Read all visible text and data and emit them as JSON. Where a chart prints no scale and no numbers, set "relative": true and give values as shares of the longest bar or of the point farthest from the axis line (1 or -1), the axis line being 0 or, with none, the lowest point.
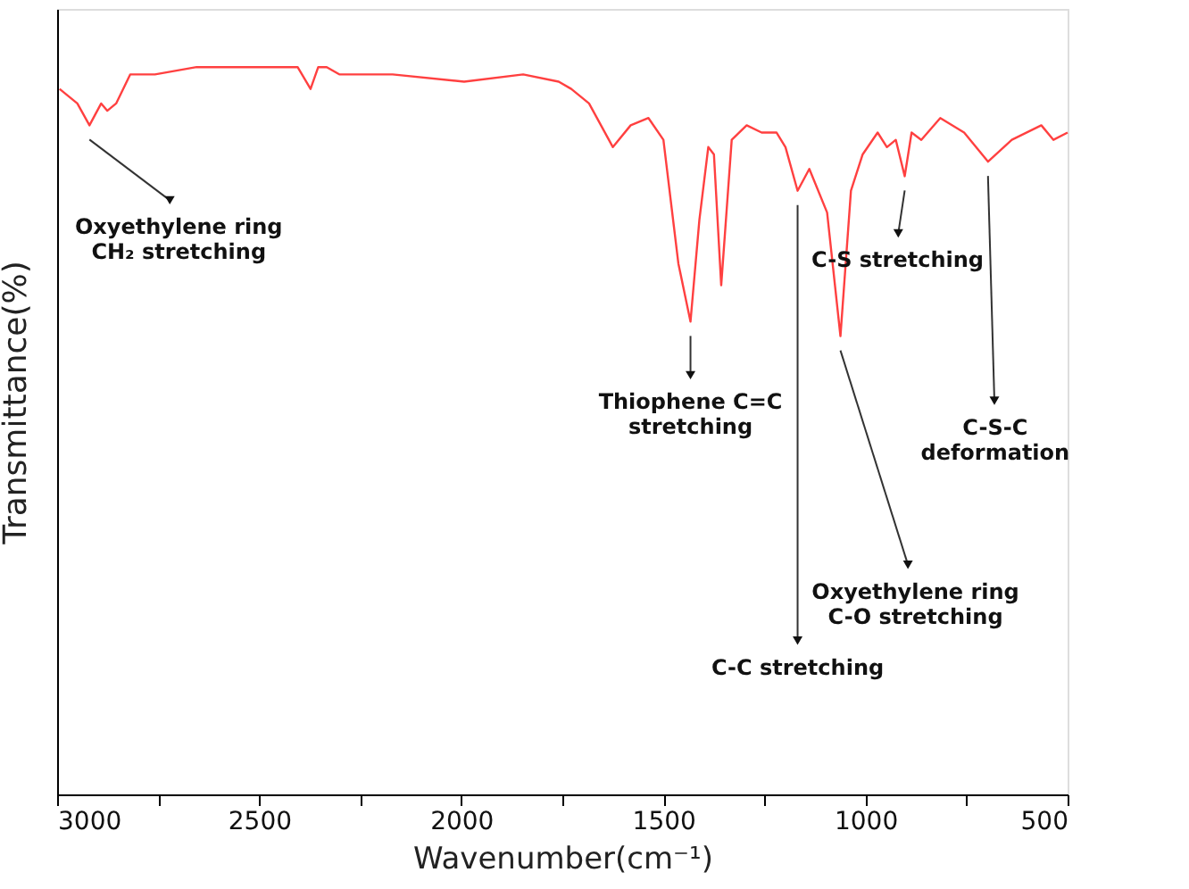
{
  "chart_data": {
    "type": "line",
    "relative": true,
    "xlabel": "Wavenumber(cm⁻¹)",
    "ylabel": "Transmittance(%)",
    "xlim": [
      3000,
      500
    ],
    "xticks": [
      3000,
      {
        "value": 2750,
        "label": null
      },
      2500,
      {
        "value": 2250,
        "label": null
      },
      2000,
      {
        "value": 1750,
        "label": null
      },
      1500,
      {
        "value": 1250,
        "label": null
      },
      1000,
      {
        "value": 750,
        "label": null
      },
      500
    ],
    "grid": false,
    "marker": "none",
    "line_style": "solid",
    "x": [
      2994,
      2950,
      2920,
      2891,
      2876,
      2854,
      2819,
      2758,
      2655,
      2405,
      2373,
      2354,
      2333,
      2302,
      2170,
      1993,
      1847,
      1759,
      1728,
      1684,
      1625,
      1581,
      1537,
      1500,
      1463,
      1433,
      1411,
      1389,
      1375,
      1357,
      1331,
      1294,
      1257,
      1220,
      1198,
      1168,
      1139,
      1095,
      1062,
      1036,
      1007,
      970,
      947,
      925,
      903,
      886,
      862,
      815,
      756,
      697,
      638,
      565,
      535,
      500
    ],
    "series": [
      {
        "color": "#ff4040",
        "values": [
          0.97,
          0.95,
          0.92,
          0.95,
          0.94,
          0.95,
          0.99,
          0.99,
          1.0,
          1.0,
          0.97,
          1.0,
          1.0,
          0.99,
          0.99,
          0.98,
          0.99,
          0.98,
          0.97,
          0.95,
          0.89,
          0.92,
          0.93,
          0.9,
          0.73,
          0.65,
          0.79,
          0.89,
          0.88,
          0.7,
          0.9,
          0.92,
          0.91,
          0.91,
          0.89,
          0.83,
          0.86,
          0.8,
          0.63,
          0.83,
          0.88,
          0.91,
          0.89,
          0.9,
          0.85,
          0.91,
          0.9,
          0.93,
          0.91,
          0.87,
          0.9,
          0.92,
          0.9,
          0.91
        ]
      }
    ],
    "annotations": [
      {
        "text": "Oxyethylene ring\nCH₂ stretching",
        "x": 2920,
        "y": 0.92
      },
      {
        "text": "Thiophene C=C\nstretching",
        "x": 1433,
        "y": 0.65
      },
      {
        "text": "C-C stretching",
        "x": 1168,
        "y": 0.83
      },
      {
        "text": "Oxyethylene ring\nC-O stretching",
        "x": 1062,
        "y": 0.63
      },
      {
        "text": "C-S stretching",
        "x": 903,
        "y": 0.85
      },
      {
        "text": "C-S-C\ndeformation",
        "x": 697,
        "y": 0.87
      }
    ]
  }
}
